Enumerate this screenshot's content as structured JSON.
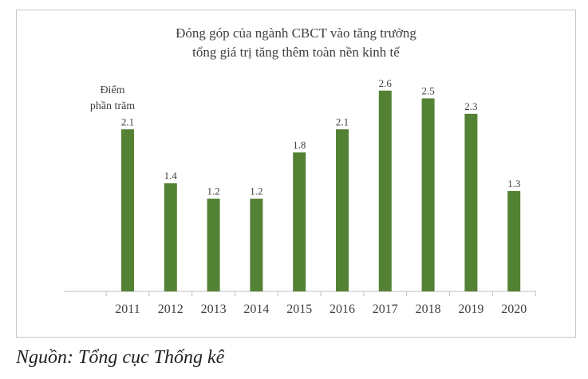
{
  "chart_data": {
    "type": "bar",
    "title_lines": [
      "Đóng góp của ngành CBCT vào tăng trưởng",
      "tổng giá trị tăng thêm toàn nền kinh tế"
    ],
    "y_unit_lines": [
      "Điểm",
      "phần trăm"
    ],
    "categories": [
      "2011",
      "2012",
      "2013",
      "2014",
      "2015",
      "2016",
      "2017",
      "2018",
      "2019",
      "2020"
    ],
    "values": [
      2.1,
      1.4,
      1.2,
      1.2,
      1.8,
      2.1,
      2.6,
      2.5,
      2.3,
      1.3
    ],
    "data_labels": [
      "2.1",
      "1.4",
      "1.2",
      "1.2",
      "1.8",
      "2.1",
      "2.6",
      "2.5",
      "2.3",
      "1.3"
    ],
    "ylim": [
      0,
      3
    ],
    "grid": false,
    "legend": "none",
    "bar_color": "#548235"
  },
  "source": "Nguồn: Tổng cục Thống kê"
}
